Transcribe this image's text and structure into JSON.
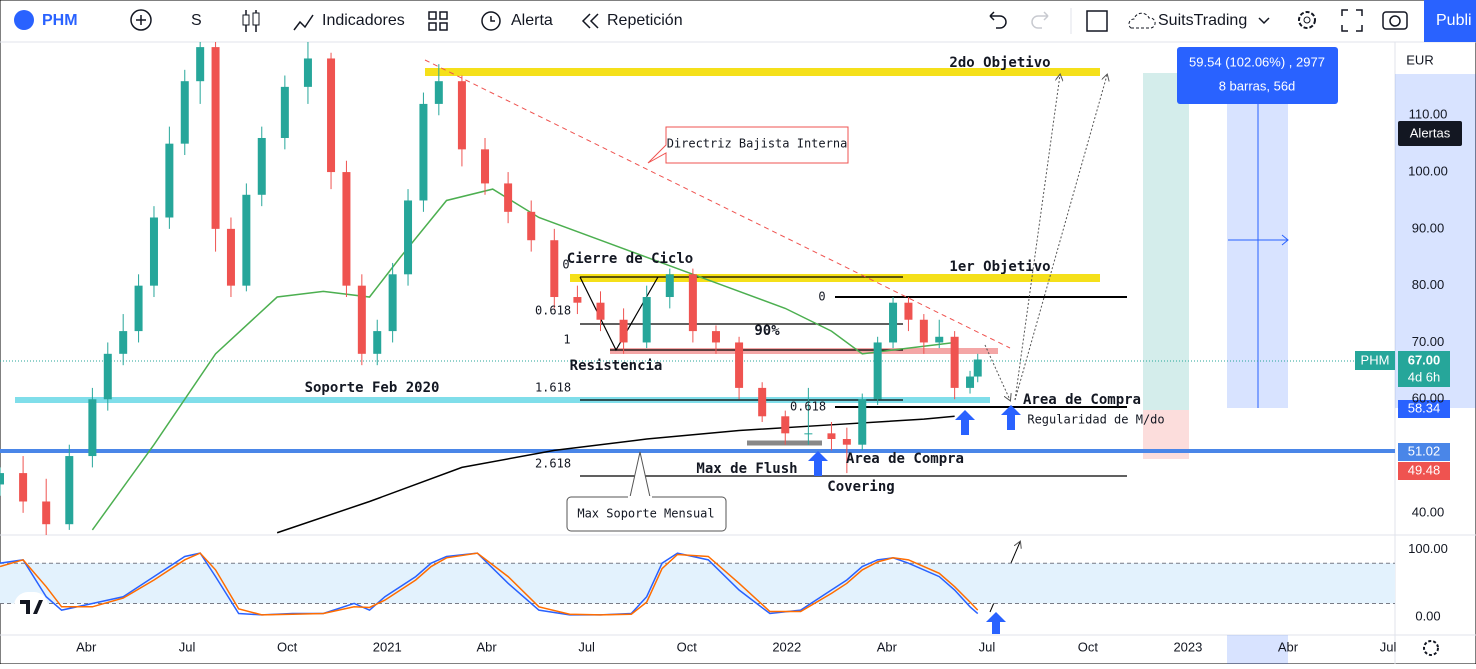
{
  "toolbar": {
    "symbol": "PHM",
    "interval": "S",
    "indicators": "Indicadores",
    "alert": "Alerta",
    "replay": "Repetición",
    "layout": "SuitsTrading",
    "publish": "Publi"
  },
  "measure": {
    "line1": "59.54 (102.06%) , 2977",
    "line2": "8 barras, 56d"
  },
  "axis_panel": {
    "currency": "EUR",
    "alerts": "Alertas"
  },
  "price_tags": {
    "symbol": "PHM",
    "last": "67.00",
    "countdown": "4d 6h",
    "level1": "58.34",
    "level2": "51.02",
    "level3": "49.48"
  },
  "annotations": {
    "target2": "2do Objetivo",
    "trend": "Directriz Bajista Interna",
    "cycle": "Cierre de Ciclo",
    "target1": "1er Objetivo",
    "fib_a0": "0",
    "fib_b0": "0",
    "fib_a618": "0.618",
    "pct": "90%",
    "fib_a1": "1",
    "resistance": "Resistencia",
    "support": "Soporte Feb 2020",
    "fib_a1618": "1.618",
    "fib_b618": "0.618",
    "buy_zone1": "Area de Compra",
    "regularity": "Regularidad de M/do",
    "fib_a2618": "2.618",
    "flush": "Max de Flush",
    "buy_zone2": "Area de Compra",
    "covering": "Covering",
    "monthly": "Max Soporte Mensual"
  },
  "chart_data": [
    {
      "type": "candlestick",
      "up_color": "#26a69a",
      "down_color": "#ef5350",
      "x": [
        0,
        3,
        6,
        9,
        12,
        14,
        16,
        18,
        20,
        22,
        24,
        26,
        28,
        30,
        32,
        34,
        37,
        40,
        43,
        45,
        47,
        49,
        51,
        53,
        55,
        57,
        60,
        63,
        66,
        69,
        72,
        75,
        78,
        81,
        84,
        87,
        90,
        93,
        96,
        99,
        102,
        105,
        108,
        110,
        112,
        114,
        116,
        118,
        120,
        122,
        124,
        126,
        127
      ],
      "open": [
        45,
        47,
        42,
        38,
        50,
        60,
        68,
        72,
        80,
        92,
        105,
        116,
        122,
        90,
        80,
        96,
        106,
        115,
        120,
        100,
        80,
        68,
        72,
        82,
        95,
        112,
        116,
        104,
        98,
        93,
        88,
        78,
        77,
        74,
        70,
        78,
        82,
        72,
        70,
        62,
        57,
        54,
        54,
        53,
        52,
        60,
        70,
        77,
        74,
        70,
        71,
        62,
        64
      ],
      "high": [
        48,
        50,
        46,
        52,
        62,
        70,
        75,
        82,
        94,
        108,
        118,
        125,
        124,
        92,
        98,
        108,
        117,
        123,
        121,
        102,
        82,
        74,
        84,
        97,
        114,
        119,
        117,
        106,
        100,
        95,
        90,
        80,
        79,
        76,
        80,
        83,
        83,
        73,
        71,
        63,
        58,
        62,
        56,
        55,
        61,
        71,
        78,
        78,
        75,
        74,
        72,
        65,
        68
      ],
      "low": [
        43,
        40,
        36,
        37,
        48,
        58,
        66,
        70,
        78,
        90,
        103,
        112,
        86,
        78,
        79,
        94,
        104,
        112,
        97,
        78,
        66,
        66,
        70,
        80,
        93,
        110,
        101,
        96,
        91,
        86,
        76,
        75,
        72,
        68,
        69,
        76,
        70,
        68,
        60,
        56,
        52,
        52,
        51,
        47,
        51,
        59,
        69,
        72,
        68,
        69,
        60,
        61,
        63
      ],
      "close": [
        47,
        42,
        38,
        50,
        60,
        68,
        72,
        80,
        92,
        105,
        116,
        122,
        90,
        80,
        96,
        106,
        115,
        120,
        100,
        80,
        68,
        72,
        82,
        95,
        112,
        116,
        104,
        98,
        93,
        88,
        78,
        77,
        74,
        70,
        78,
        82,
        72,
        70,
        62,
        57,
        54,
        54,
        53,
        52,
        60,
        70,
        77,
        74,
        70,
        71,
        62,
        64,
        67
      ],
      "lines": [
        {
          "color": "#4caf50",
          "x": [
            12,
            20,
            28,
            36,
            42,
            48,
            52,
            58,
            64,
            70,
            78,
            86,
            94,
            102,
            108,
            112,
            118,
            124
          ],
          "values": [
            37,
            52,
            68,
            78,
            79,
            78,
            85,
            95,
            97,
            92,
            88,
            84,
            80,
            76,
            72,
            68,
            69,
            70
          ]
        },
        {
          "color": "#000000",
          "x": [
            36,
            48,
            60,
            72,
            84,
            96,
            108,
            120,
            124
          ],
          "values": [
            36.5,
            42,
            48,
            51,
            53,
            54.5,
            55.5,
            56.5,
            57
          ]
        }
      ],
      "xlim": [
        0,
        181.2
      ],
      "ylim": [
        36.1,
        122.9
      ],
      "yticks": [
        {
          "value": 40,
          "label": "40.00"
        },
        {
          "value": 60,
          "label": "60.00"
        },
        {
          "value": 70,
          "label": "70.00"
        },
        {
          "value": 80,
          "label": "80.00"
        },
        {
          "value": 90,
          "label": "90.00"
        },
        {
          "value": 100,
          "label": "100.00"
        },
        {
          "value": 110,
          "label": "110.00"
        }
      ],
      "xticks": [
        {
          "value": 11.2,
          "label": "Abr"
        },
        {
          "value": 24.3,
          "label": "Jul"
        },
        {
          "value": 37.3,
          "label": "Oct"
        },
        {
          "value": 50.3,
          "label": "2021"
        },
        {
          "value": 63.2,
          "label": "Abr"
        },
        {
          "value": 76.2,
          "label": "Jul"
        },
        {
          "value": 89.2,
          "label": "Oct"
        },
        {
          "value": 102.2,
          "label": "2022"
        },
        {
          "value": 115.2,
          "label": "Abr"
        },
        {
          "value": 128.2,
          "label": "Jul"
        },
        {
          "value": 141.3,
          "label": "Oct"
        },
        {
          "value": 154.3,
          "label": "2023"
        },
        {
          "value": 167.3,
          "label": "Abr"
        },
        {
          "value": 180.3,
          "label": "Jul"
        }
      ],
      "grid": false
    },
    {
      "type": "line",
      "x": [
        0,
        3,
        6,
        8,
        12,
        16,
        20,
        24,
        26,
        28,
        31,
        34,
        38,
        42,
        46,
        48,
        50,
        54,
        56,
        58,
        62,
        66,
        70,
        74,
        78,
        82,
        84,
        86,
        88,
        92,
        96,
        100,
        104,
        108,
        110,
        112,
        114,
        116,
        118,
        122,
        124,
        126,
        127
      ],
      "series": [
        {
          "color": "#2962ff",
          "values": [
            80,
            85,
            30,
            10,
            20,
            30,
            60,
            90,
            95,
            60,
            5,
            3,
            5,
            5,
            20,
            10,
            30,
            60,
            80,
            90,
            95,
            50,
            10,
            3,
            3,
            5,
            30,
            80,
            95,
            85,
            40,
            5,
            10,
            40,
            55,
            75,
            85,
            88,
            80,
            60,
            40,
            15,
            5
          ]
        },
        {
          "color": "#ff6d00",
          "values": [
            75,
            85,
            45,
            15,
            15,
            28,
            55,
            85,
            95,
            70,
            12,
            3,
            4,
            5,
            15,
            14,
            25,
            55,
            75,
            88,
            95,
            60,
            15,
            4,
            3,
            4,
            22,
            72,
            93,
            90,
            50,
            8,
            8,
            35,
            50,
            70,
            82,
            88,
            85,
            65,
            45,
            22,
            10
          ]
        }
      ],
      "levels": [
        20,
        80
      ],
      "band_color": "#e3f2fd",
      "ylim": [
        -27,
        122
      ],
      "yticks": [
        {
          "value": 0,
          "label": "0.00"
        },
        {
          "value": 100,
          "label": "100.00"
        }
      ]
    }
  ]
}
